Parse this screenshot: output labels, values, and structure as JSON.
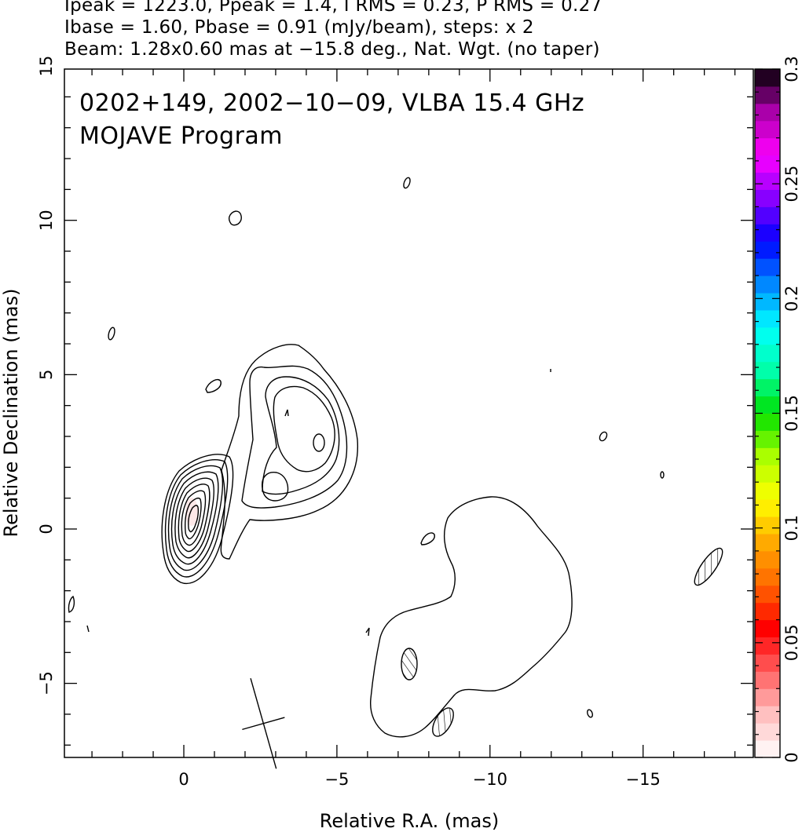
{
  "header": {
    "line1": "Ipeak = 1223.0, Ppeak = 1.4, I RMS = 0.23, P RMS = 0.27",
    "line2": "Ibase = 1.60, Pbase = 0.91 (mJy/beam), steps: x 2",
    "line3": "Beam: 1.28x0.60 mas at −15.8 deg., Nat. Wgt. (no taper)"
  },
  "chart_data": {
    "type": "contour",
    "annotation_lines": [
      "0202+149, 2002−10−09, VLBA 15.4 GHz",
      "MOJAVE Program"
    ],
    "xlabel": "Relative R.A. (mas)",
    "ylabel": "Relative Declination (mas)",
    "xlim": [
      3.9,
      -18.6
    ],
    "ylim": [
      -7.4,
      14.9
    ],
    "xticks": [
      0,
      -5,
      -10,
      -15
    ],
    "xtick_labels": [
      "0",
      "−5",
      "−10",
      "−15"
    ],
    "yticks": [
      -5,
      0,
      5,
      10,
      15
    ],
    "ytick_labels": [
      "−5",
      "0",
      "5",
      "10",
      "15"
    ],
    "colorbar": {
      "range": [
        0,
        0.3
      ],
      "ticks": [
        0,
        0.05,
        0.1,
        0.15,
        0.2,
        0.25,
        0.3
      ],
      "tick_labels": [
        "0",
        "0.05",
        "0.1",
        "0.15",
        "0.2",
        "0.25",
        "0.3"
      ],
      "colors": [
        "#ffffff",
        "#ffc0c0",
        "#ff6060",
        "#ff0000",
        "#ff6600",
        "#ffaa00",
        "#ffff00",
        "#aaff00",
        "#00e000",
        "#00ffaa",
        "#00ffff",
        "#0088ff",
        "#0000ff",
        "#8800ff",
        "#ff00ff",
        "#aa00aa",
        "#000000"
      ]
    },
    "core": {
      "ra": -0.3,
      "dec": 0.4,
      "peak_mJy_per_beam": 1223.0
    },
    "beam": {
      "major_mas": 1.28,
      "minor_mas": 0.6,
      "pa_deg": -15.8,
      "ra": -2.6,
      "dec": -6.3
    },
    "grid": false
  }
}
